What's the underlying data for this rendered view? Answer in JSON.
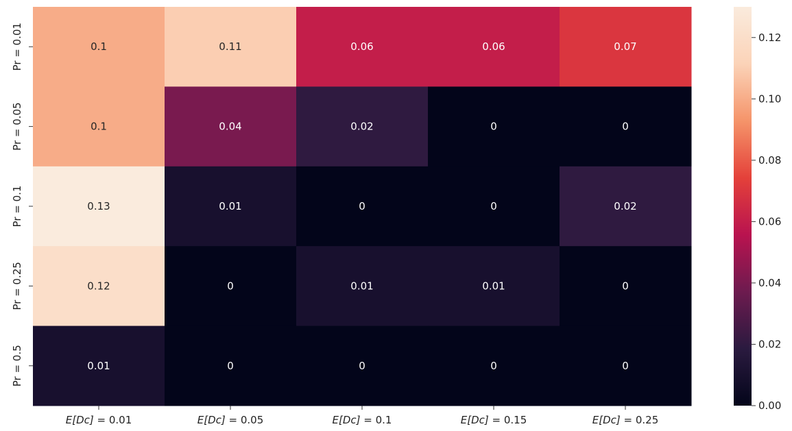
{
  "chart_data": {
    "type": "heatmap",
    "title": "",
    "xlabel": "",
    "ylabel": "",
    "x_categories": [
      {
        "base": "E",
        "sub": "[Dc]",
        "value": " = 0.01"
      },
      {
        "base": "E",
        "sub": "[Dc]",
        "value": " = 0.05"
      },
      {
        "base": "E",
        "sub": "[Dc]",
        "value": " = 0.1"
      },
      {
        "base": "E",
        "sub": "[Dc]",
        "value": " = 0.15"
      },
      {
        "base": "E",
        "sub": "[Dc]",
        "value": " = 0.25"
      }
    ],
    "y_categories": [
      "Pr = 0.01",
      "Pr = 0.05",
      "Pr = 0.1",
      "Pr = 0.25",
      "Pr = 0.5"
    ],
    "values": [
      [
        0.1,
        0.11,
        0.06,
        0.06,
        0.07
      ],
      [
        0.1,
        0.04,
        0.02,
        0.0,
        0.0
      ],
      [
        0.13,
        0.01,
        0.0,
        0.0,
        0.02
      ],
      [
        0.12,
        0.0,
        0.01,
        0.01,
        0.0
      ],
      [
        0.01,
        0.0,
        0.0,
        0.0,
        0.0
      ]
    ],
    "annotations": [
      [
        "0.1",
        "0.11",
        "0.06",
        "0.06",
        "0.07"
      ],
      [
        "0.1",
        "0.04",
        "0.02",
        "0",
        "0"
      ],
      [
        "0.13",
        "0.01",
        "0",
        "0",
        "0.02"
      ],
      [
        "0.12",
        "0",
        "0.01",
        "0.01",
        "0"
      ],
      [
        "0.01",
        "0",
        "0",
        "0",
        "0"
      ]
    ],
    "colorbar": {
      "vmin": 0.0,
      "vmax": 0.13,
      "ticks": [
        0.0,
        0.02,
        0.04,
        0.06,
        0.08,
        0.1,
        0.12
      ],
      "tick_labels": [
        "0.00",
        "0.02",
        "0.04",
        "0.06",
        "0.08",
        "0.10",
        "0.12"
      ],
      "colormap": "rocket",
      "stops": [
        "#03051a",
        "#2a1a3f",
        "#6d1b4f",
        "#b9134f",
        "#e4413a",
        "#f5946a",
        "#fbd3b8",
        "#faebdd"
      ]
    }
  }
}
